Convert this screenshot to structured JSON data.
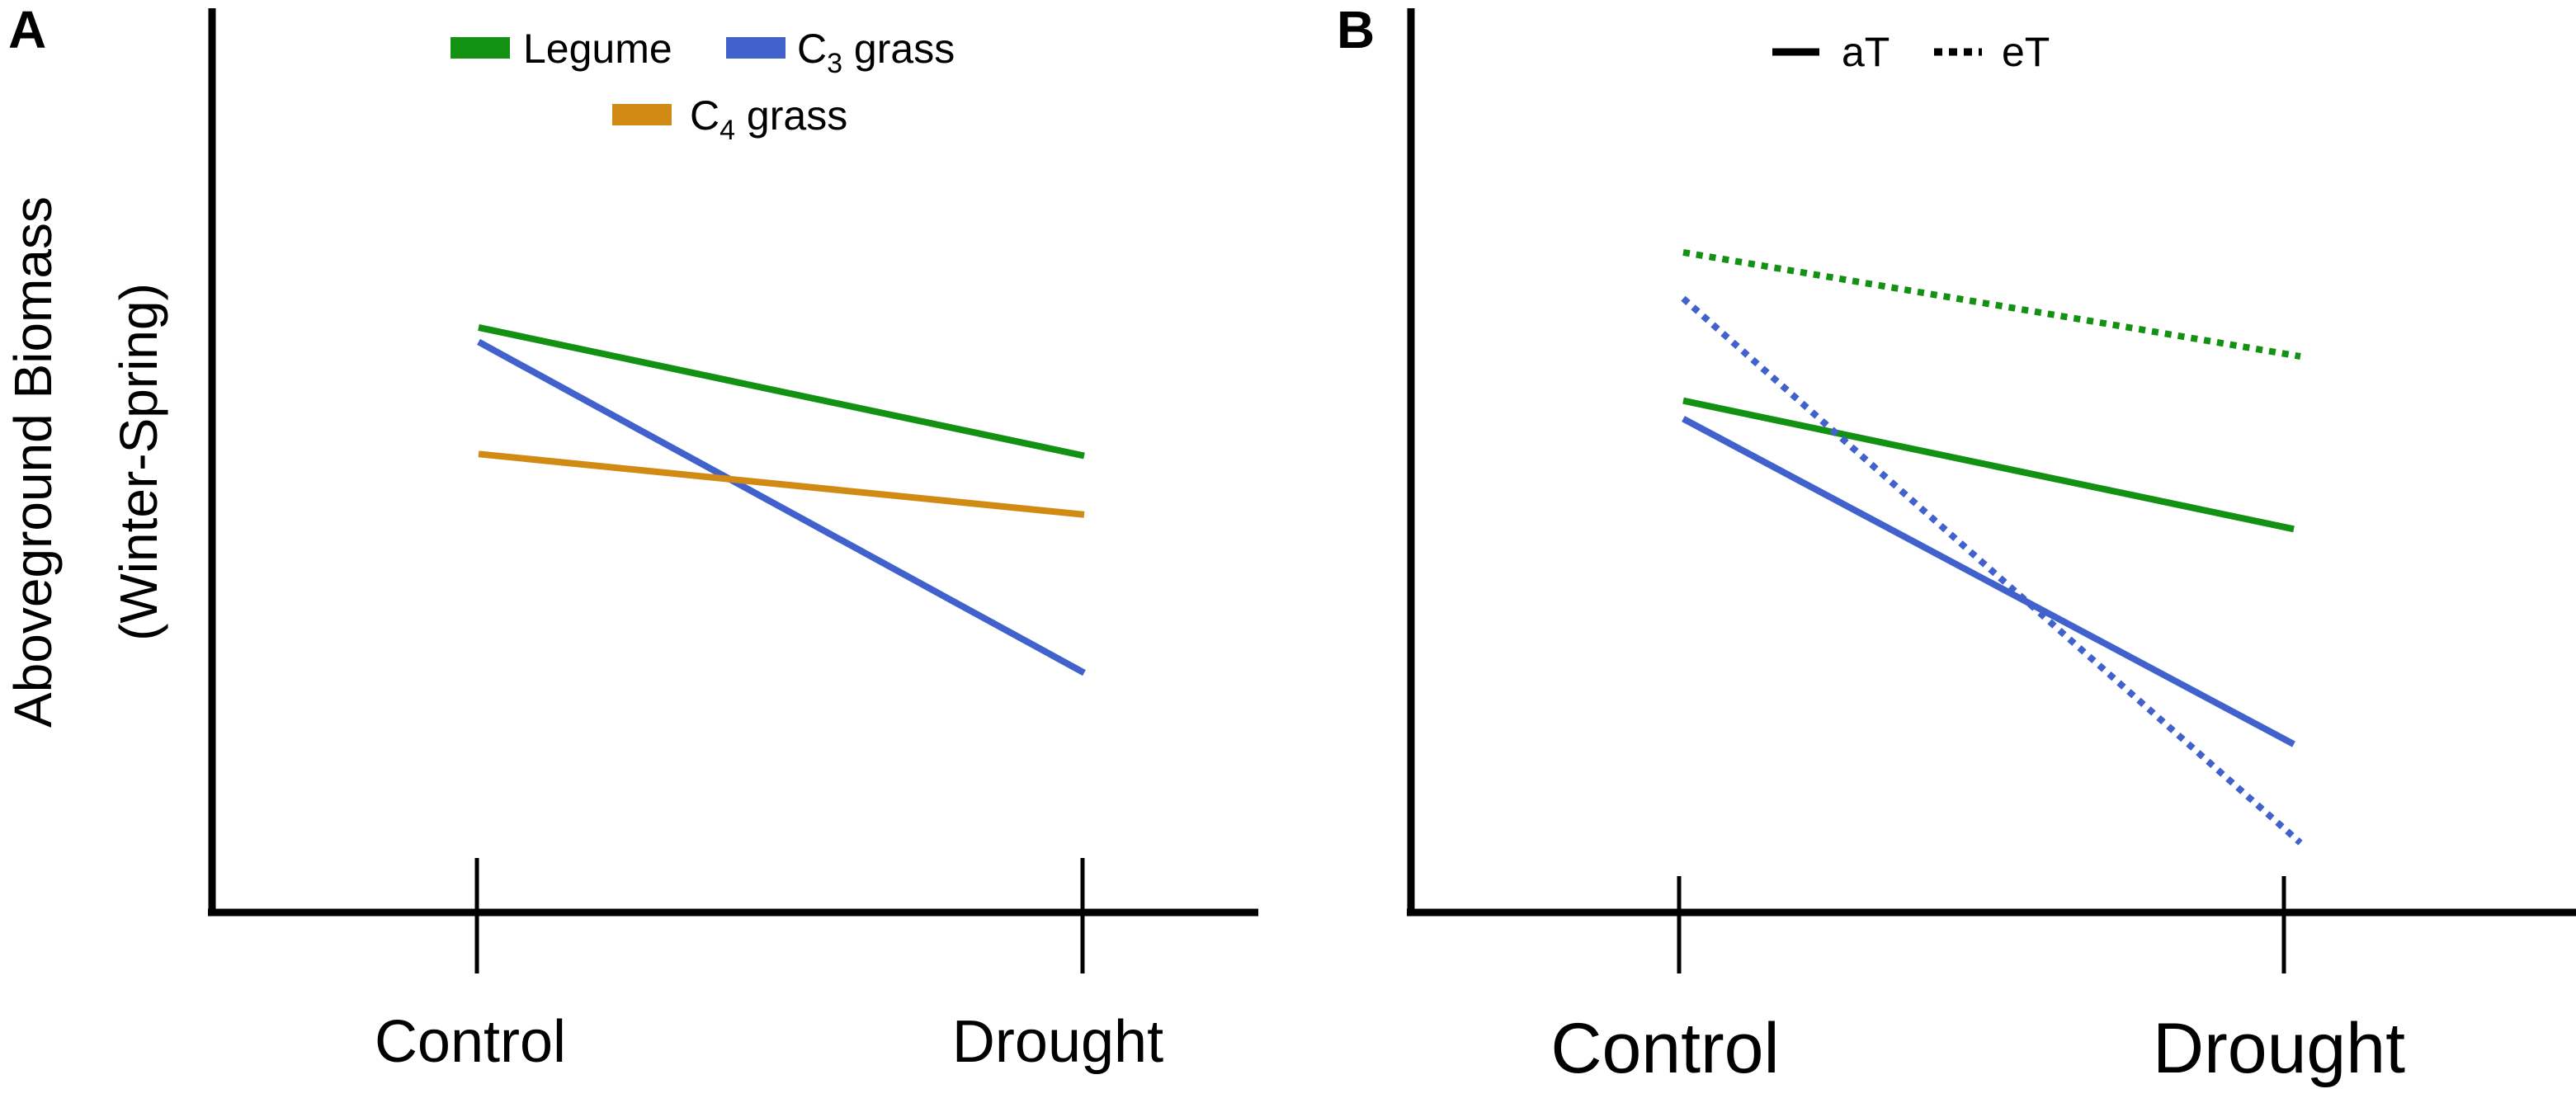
{
  "figure": {
    "ylabel_line1": "Aboveground Biomass",
    "ylabel_line2": "(Winter-Spring)"
  },
  "chart_data": [
    {
      "panel": "A",
      "type": "line",
      "title": "",
      "xlabel": "",
      "ylabel": "Aboveground Biomass (Winter-Spring)",
      "categories": [
        "Control",
        "Drought"
      ],
      "ylim": [
        0,
        100
      ],
      "y_ticks_shown": false,
      "legend": {
        "placement": "top-center",
        "entries": [
          {
            "series": "Legume",
            "label": "Legume",
            "sub": ""
          },
          {
            "series": "C3 grass",
            "label": "C",
            "sub": "3",
            "suffix": " grass"
          },
          {
            "series": "C4 grass",
            "label": "C",
            "sub": "4",
            "suffix": " grass"
          }
        ]
      },
      "series": [
        {
          "name": "Legume",
          "color": "#139113",
          "dash": "solid",
          "values": [
            64.7,
            50.5
          ]
        },
        {
          "name": "C3 grass",
          "color": "#4162cc",
          "dash": "solid",
          "values": [
            63.1,
            26.5
          ]
        },
        {
          "name": "C4 grass",
          "color": "#d18b14",
          "dash": "solid",
          "values": [
            50.7,
            44.0
          ]
        }
      ]
    },
    {
      "panel": "B",
      "type": "line",
      "title": "",
      "xlabel": "",
      "ylabel": "",
      "categories": [
        "Control",
        "Drought"
      ],
      "ylim": [
        0,
        100
      ],
      "y_ticks_shown": false,
      "legend": {
        "placement": "top-center",
        "entries": [
          {
            "label": "aT",
            "dash": "solid"
          },
          {
            "label": "eT",
            "dash": "dotted"
          }
        ]
      },
      "series": [
        {
          "name": "Legume aT",
          "color": "#139113",
          "dash": "solid",
          "values": [
            56.6,
            42.4
          ]
        },
        {
          "name": "Legume eT",
          "color": "#139113",
          "dash": "dotted",
          "values": [
            73.0,
            61.5
          ]
        },
        {
          "name": "C3 grass aT",
          "color": "#4162cc",
          "dash": "solid",
          "values": [
            54.6,
            18.6
          ]
        },
        {
          "name": "C3 grass eT",
          "color": "#4162cc",
          "dash": "dotted",
          "values": [
            67.9,
            7.7
          ]
        }
      ]
    }
  ]
}
